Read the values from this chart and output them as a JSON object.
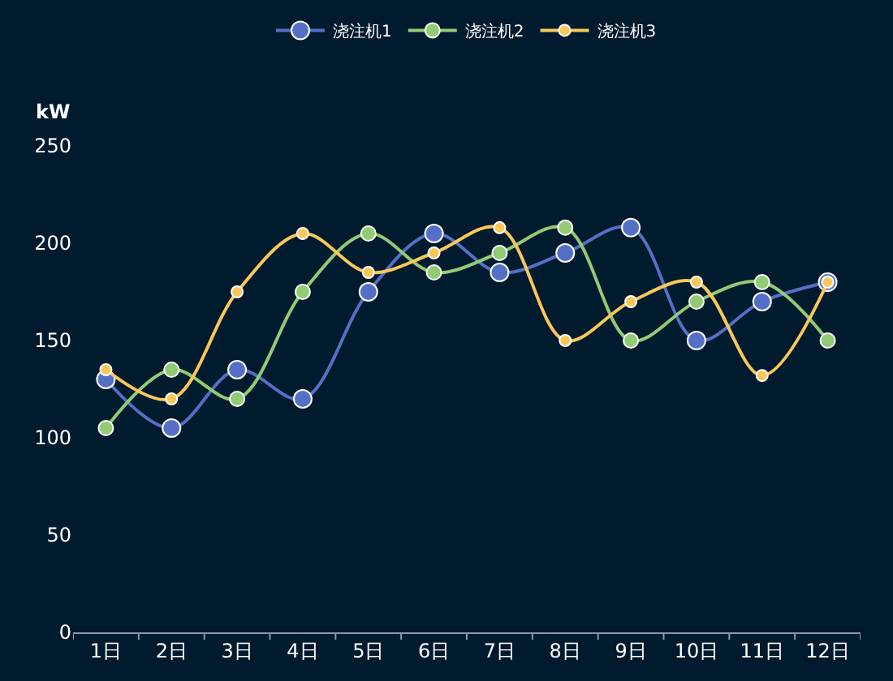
{
  "chart_data": {
    "type": "line",
    "ylabel": "kW",
    "categories": [
      "1日",
      "2日",
      "3日",
      "4日",
      "5日",
      "6日",
      "7日",
      "8日",
      "9日",
      "10日",
      "11日",
      "12日"
    ],
    "series": [
      {
        "name": "浇注机1",
        "color": "#5470c6",
        "values": [
          130,
          105,
          135,
          120,
          175,
          205,
          185,
          195,
          208,
          150,
          170,
          180
        ]
      },
      {
        "name": "浇注机2",
        "color": "#91cc75",
        "values": [
          105,
          135,
          120,
          175,
          205,
          185,
          195,
          208,
          150,
          170,
          180,
          150
        ]
      },
      {
        "name": "浇注机3",
        "color": "#fac858",
        "values": [
          135,
          120,
          175,
          205,
          185,
          195,
          208,
          150,
          170,
          180,
          132,
          180
        ]
      }
    ],
    "ylim": [
      0,
      250
    ],
    "yticks": [
      0,
      50,
      100,
      150,
      200,
      250
    ],
    "grid": false,
    "legend": "top",
    "marker": "circle",
    "line_style": "solid"
  }
}
